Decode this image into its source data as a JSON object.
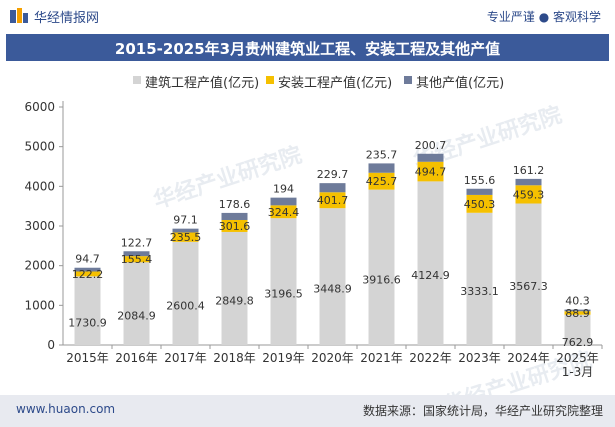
{
  "header": {
    "site_name": "华经情报网",
    "slogan": "专业严谨 ● 客观科学"
  },
  "footer": {
    "url": "www.huaon.com",
    "source": "数据来源：国家统计局，华经产业研究院整理"
  },
  "watermark": {
    "cn": "华经产业研究院",
    "en": "www.huaon.com"
  },
  "colors": {
    "construction": "#d4d4d4",
    "installation": "#f5c000",
    "other": "#6e7b9a",
    "brand": "#3b5a9a"
  },
  "chart_data": {
    "type": "bar",
    "stacked": true,
    "title": "2015-2025年3月贵州建筑业工程、安装工程及其他产值",
    "categories": [
      "2015年",
      "2016年",
      "2017年",
      "2018年",
      "2019年",
      "2020年",
      "2021年",
      "2022年",
      "2023年",
      "2024年",
      "2025年\n1-3月"
    ],
    "series": [
      {
        "name": "建筑工程产值(亿元)",
        "values": [
          1730.9,
          2084.9,
          2600.4,
          2849.8,
          3196.5,
          3448.9,
          3916.6,
          4124.9,
          3333.1,
          3567.3,
          762.9
        ]
      },
      {
        "name": "安装工程产值(亿元)",
        "values": [
          122.2,
          155.4,
          235.5,
          301.6,
          324.4,
          401.7,
          425.7,
          494.7,
          450.3,
          459.3,
          88.9
        ]
      },
      {
        "name": "其他产值(亿元)",
        "values": [
          94.7,
          122.7,
          97.1,
          178.6,
          194,
          229.7,
          235.7,
          200.7,
          155.6,
          161.2,
          40.3
        ]
      }
    ],
    "ylim": [
      0,
      6000
    ],
    "yticks": [
      0,
      1000,
      2000,
      3000,
      4000,
      5000,
      6000
    ],
    "grid": false,
    "legend": "top"
  }
}
